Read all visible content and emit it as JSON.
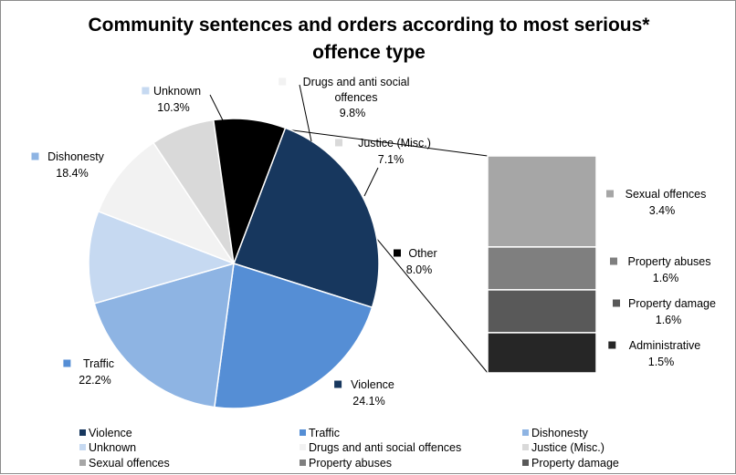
{
  "chart_data": {
    "type": "pie",
    "title_lines": [
      "Community sentences and orders according to most serious*",
      "offence type"
    ],
    "slices": [
      {
        "name": "Violence",
        "value": 24.1,
        "label": "24.1%",
        "color": "#17375e"
      },
      {
        "name": "Traffic",
        "value": 22.2,
        "label": "22.2%",
        "color": "#558ed5"
      },
      {
        "name": "Dishonesty",
        "value": 18.4,
        "label": "18.4%",
        "color": "#8eb4e3"
      },
      {
        "name": "Unknown",
        "value": 10.3,
        "label": "10.3%",
        "color": "#c6d9f1"
      },
      {
        "name_lines": [
          "Drugs and anti social",
          "offences"
        ],
        "name": "Drugs and anti social offences",
        "value": 9.8,
        "label": "9.8%",
        "color": "#f2f2f2"
      },
      {
        "name": "Justice (Misc.)",
        "value": 7.1,
        "label": "7.1%",
        "color": "#d9d9d9"
      },
      {
        "name": "Other",
        "value": 8.0,
        "label": "8.0%",
        "color": "#000000"
      }
    ],
    "breakdown_of": "Other",
    "breakdown": [
      {
        "name": "Sexual offences",
        "value": 3.4,
        "label": "3.4%",
        "color": "#a6a6a6"
      },
      {
        "name": "Property abuses",
        "value": 1.6,
        "label": "1.6%",
        "color": "#7f7f7f"
      },
      {
        "name": "Property damage",
        "value": 1.6,
        "label": "1.6%",
        "color": "#595959"
      },
      {
        "name": "Administrative",
        "value": 1.5,
        "label": "1.5%",
        "color": "#262626"
      }
    ],
    "legend": {
      "position": "bottom",
      "items": [
        {
          "name": "Violence",
          "color": "#17375e"
        },
        {
          "name": "Traffic",
          "color": "#558ed5"
        },
        {
          "name": "Dishonesty",
          "color": "#8eb4e3"
        },
        {
          "name": "Unknown",
          "color": "#c6d9f1"
        },
        {
          "name": "Drugs and anti social offences",
          "color": "#f2f2f2"
        },
        {
          "name": "Justice (Misc.)",
          "color": "#d9d9d9"
        },
        {
          "name": "Sexual offences",
          "color": "#a6a6a6"
        },
        {
          "name": "Property abuses",
          "color": "#7f7f7f"
        },
        {
          "name": "Property damage",
          "color": "#595959"
        }
      ]
    }
  }
}
